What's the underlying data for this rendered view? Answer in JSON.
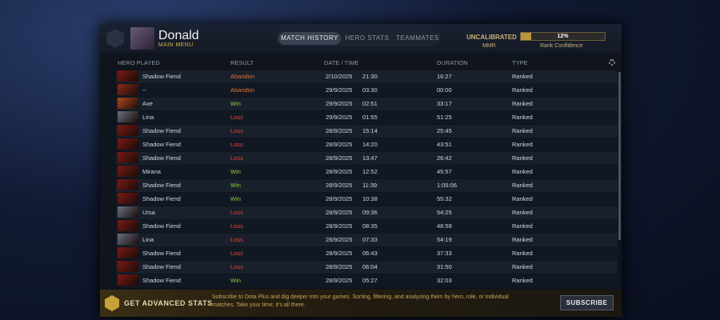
{
  "profile": {
    "name": "Donald",
    "subtitle": "MAIN MENU"
  },
  "tabs": [
    "MATCH HISTORY",
    "HERO STATS",
    "TEAMMATES"
  ],
  "rank": {
    "status": "UNCALIBRATED",
    "mmr_label": "MMR",
    "confidence": {
      "value": 12,
      "label": "12%"
    },
    "confidence_label": "Rank Confidence"
  },
  "table": {
    "columns": [
      "HERO PLAYED",
      "RESULT",
      "DATE / TIME",
      "DURATION",
      "TYPE"
    ],
    "result_colors": {
      "Win": "#8fcf3c",
      "Loss": "#e0443a",
      "Abandon": "#e8702a"
    },
    "rows": [
      {
        "hero": "Shadow Fiend",
        "result": "Abandon",
        "date": "2/10/2025",
        "time": "21:30",
        "duration": "16:27",
        "type": "Ranked"
      },
      {
        "hero": "--",
        "result": "Abandon",
        "date": "29/9/2025",
        "time": "03:30",
        "duration": "00:00",
        "type": "Ranked"
      },
      {
        "hero": "Axe",
        "result": "Win",
        "date": "29/9/2025",
        "time": "02:51",
        "duration": "33:17",
        "type": "Ranked"
      },
      {
        "hero": "Lina",
        "result": "Loss",
        "date": "29/9/2025",
        "time": "01:55",
        "duration": "51:25",
        "type": "Ranked"
      },
      {
        "hero": "Shadow Fiend",
        "result": "Loss",
        "date": "28/9/2025",
        "time": "15:14",
        "duration": "25:45",
        "type": "Ranked"
      },
      {
        "hero": "Shadow Fiend",
        "result": "Loss",
        "date": "28/9/2025",
        "time": "14:20",
        "duration": "43:51",
        "type": "Ranked"
      },
      {
        "hero": "Shadow Fiend",
        "result": "Loss",
        "date": "28/9/2025",
        "time": "13:47",
        "duration": "26:42",
        "type": "Ranked"
      },
      {
        "hero": "Mirana",
        "result": "Win",
        "date": "28/9/2025",
        "time": "12:52",
        "duration": "45:57",
        "type": "Ranked"
      },
      {
        "hero": "Shadow Fiend",
        "result": "Win",
        "date": "28/9/2025",
        "time": "11:39",
        "duration": "1:05:06",
        "type": "Ranked"
      },
      {
        "hero": "Shadow Fiend",
        "result": "Win",
        "date": "28/9/2025",
        "time": "10:38",
        "duration": "55:32",
        "type": "Ranked"
      },
      {
        "hero": "Ursa",
        "result": "Loss",
        "date": "28/9/2025",
        "time": "09:36",
        "duration": "54:25",
        "type": "Ranked"
      },
      {
        "hero": "Shadow Fiend",
        "result": "Loss",
        "date": "28/9/2025",
        "time": "08:35",
        "duration": "48:58",
        "type": "Ranked"
      },
      {
        "hero": "Lina",
        "result": "Loss",
        "date": "28/9/2025",
        "time": "07:33",
        "duration": "54:19",
        "type": "Ranked"
      },
      {
        "hero": "Shadow Fiend",
        "result": "Loss",
        "date": "28/9/2025",
        "time": "06:43",
        "duration": "37:33",
        "type": "Ranked"
      },
      {
        "hero": "Shadow Fiend",
        "result": "Loss",
        "date": "28/9/2025",
        "time": "06:04",
        "duration": "31:50",
        "type": "Ranked"
      },
      {
        "hero": "Shadow Fiend",
        "result": "Win",
        "date": "28/9/2025",
        "time": "05:27",
        "duration": "32:03",
        "type": "Ranked"
      }
    ]
  },
  "promo": {
    "title": "GET ADVANCED STATS",
    "text": "Subscribe to Dota Plus and dig deeper into your games. Sorting, filtering, and analyzing them by hero, role, or individual matches. Take your time; it's all there.",
    "button": "SUBSCRIBE"
  }
}
